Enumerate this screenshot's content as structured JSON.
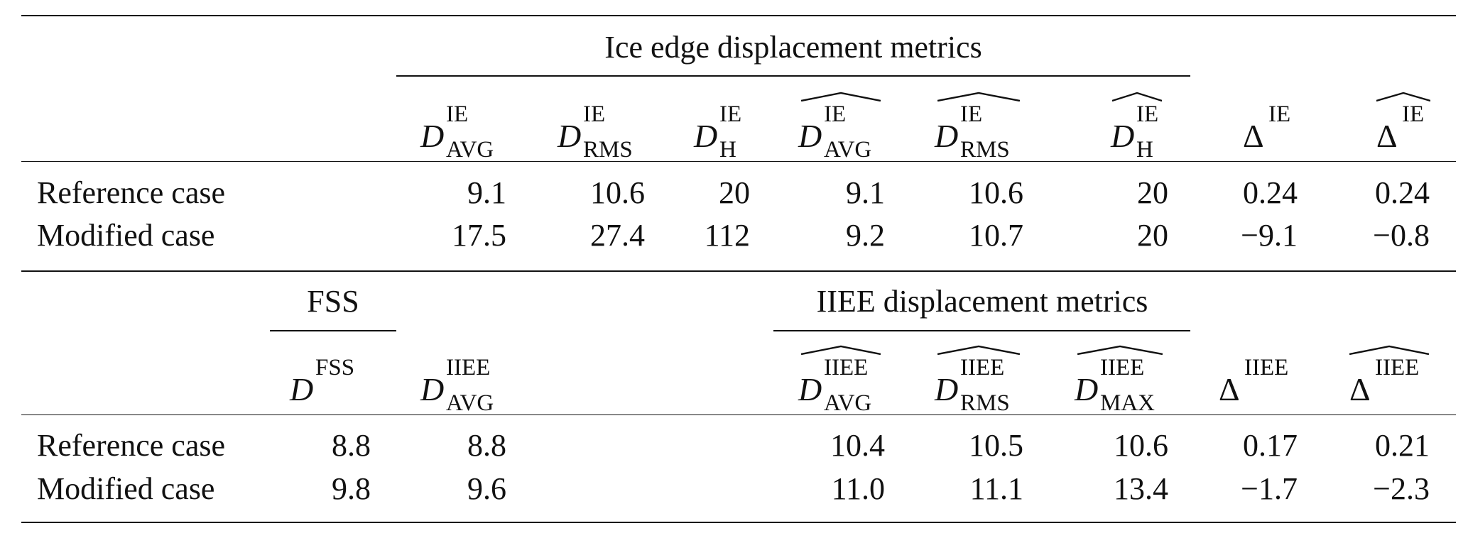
{
  "table": {
    "top_section": {
      "group_header": "Ice edge displacement metrics",
      "columns": [
        {
          "id": "d_avg_ie",
          "base": "D",
          "sup": "IE",
          "sub": "AVG",
          "hat": false
        },
        {
          "id": "d_rms_ie",
          "base": "D",
          "sup": "IE",
          "sub": "RMS",
          "hat": false
        },
        {
          "id": "d_h_ie",
          "base": "D",
          "sup": "IE",
          "sub": "H",
          "hat": false
        },
        {
          "id": "d_avg_ie_hat",
          "base": "D",
          "sup": "IE",
          "sub": "AVG",
          "hat": true
        },
        {
          "id": "d_rms_ie_hat",
          "base": "D",
          "sup": "IE",
          "sub": "RMS",
          "hat": true
        },
        {
          "id": "d_h_ie_hat",
          "base": "D",
          "sup": "IE",
          "sub": "H",
          "hat": true
        },
        {
          "id": "delta_ie",
          "base": "Δ",
          "sup": "IE",
          "sub": "",
          "hat": false
        },
        {
          "id": "delta_ie_hat",
          "base": "Δ",
          "sup": "IE",
          "sub": "",
          "hat": true
        }
      ],
      "rows": [
        {
          "label": "Reference case",
          "values": [
            "9.1",
            "10.6",
            "20",
            "9.1",
            "10.6",
            "20",
            "0.24",
            "0.24"
          ]
        },
        {
          "label": "Modified case",
          "values": [
            "17.5",
            "27.4",
            "112",
            "9.2",
            "10.7",
            "20",
            "−9.1",
            "−0.8"
          ]
        }
      ]
    },
    "bottom_section": {
      "group_header_fss": "FSS",
      "group_header_iiee": "IIEE displacement metrics",
      "columns": [
        {
          "id": "d_fss",
          "base": "D",
          "sup": "FSS",
          "sub": "",
          "hat": false
        },
        {
          "id": "d_avg_iiee",
          "base": "D",
          "sup": "IIEE",
          "sub": "AVG",
          "hat": false
        },
        {
          "id": "d_avg_iiee_hat",
          "base": "D",
          "sup": "IIEE",
          "sub": "AVG",
          "hat": true
        },
        {
          "id": "d_rms_iiee_hat",
          "base": "D",
          "sup": "IIEE",
          "sub": "RMS",
          "hat": true
        },
        {
          "id": "d_max_iiee_hat",
          "base": "D",
          "sup": "IIEE",
          "sub": "MAX",
          "hat": true
        },
        {
          "id": "delta_iiee",
          "base": "Δ",
          "sup": "IIEE",
          "sub": "",
          "hat": false
        },
        {
          "id": "delta_iiee_hat",
          "base": "Δ",
          "sup": "IIEE",
          "sub": "",
          "hat": true
        }
      ],
      "rows": [
        {
          "label": "Reference case",
          "values": [
            "8.8",
            "8.8",
            "10.4",
            "10.5",
            "10.6",
            "0.17",
            "0.21"
          ]
        },
        {
          "label": "Modified case",
          "values": [
            "9.8",
            "9.6",
            "11.0",
            "11.1",
            "13.4",
            "−1.7",
            "−2.3"
          ]
        }
      ]
    }
  }
}
